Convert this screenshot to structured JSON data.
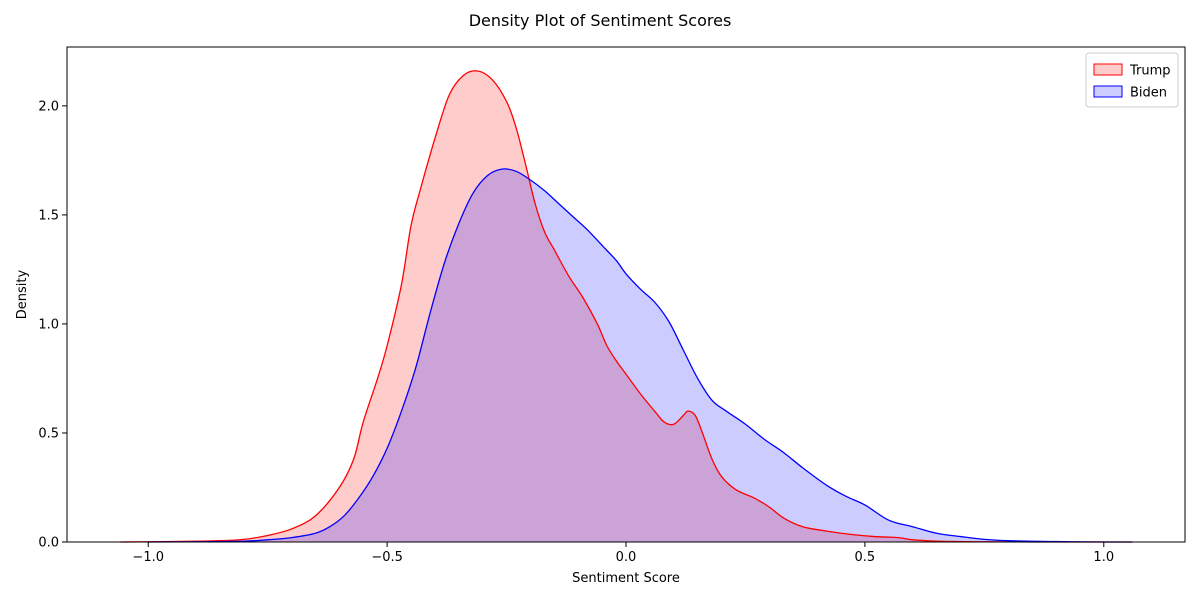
{
  "chart_data": {
    "type": "area",
    "title": "Density Plot of Sentiment Scores",
    "xlabel": "Sentiment Score",
    "ylabel": "Density",
    "xlim": [
      -1.17,
      1.17
    ],
    "ylim": [
      0,
      2.27
    ],
    "xticks": [
      -1.0,
      -0.5,
      0.0,
      0.5,
      1.0
    ],
    "xtick_labels": [
      "−1.0",
      "−0.5",
      "0.0",
      "0.5",
      "1.0"
    ],
    "yticks": [
      0.0,
      0.5,
      1.0,
      1.5,
      2.0
    ],
    "ytick_labels": [
      "0.0",
      "0.5",
      "1.0",
      "1.5",
      "2.0"
    ],
    "grid": false,
    "legend_position": "top-right",
    "series": [
      {
        "name": "Trump",
        "color": "#ff0000",
        "fill": "#ff0000",
        "fill_opacity": 0.2,
        "points": [
          [
            -1.06,
            0.0
          ],
          [
            -0.95,
            0.002
          ],
          [
            -0.85,
            0.006
          ],
          [
            -0.8,
            0.012
          ],
          [
            -0.75,
            0.03
          ],
          [
            -0.7,
            0.06
          ],
          [
            -0.65,
            0.12
          ],
          [
            -0.6,
            0.25
          ],
          [
            -0.57,
            0.38
          ],
          [
            -0.55,
            0.55
          ],
          [
            -0.52,
            0.75
          ],
          [
            -0.5,
            0.9
          ],
          [
            -0.47,
            1.18
          ],
          [
            -0.45,
            1.45
          ],
          [
            -0.43,
            1.62
          ],
          [
            -0.4,
            1.85
          ],
          [
            -0.37,
            2.05
          ],
          [
            -0.34,
            2.14
          ],
          [
            -0.31,
            2.16
          ],
          [
            -0.28,
            2.12
          ],
          [
            -0.25,
            2.02
          ],
          [
            -0.23,
            1.9
          ],
          [
            -0.21,
            1.73
          ],
          [
            -0.19,
            1.55
          ],
          [
            -0.17,
            1.42
          ],
          [
            -0.15,
            1.34
          ],
          [
            -0.12,
            1.22
          ],
          [
            -0.09,
            1.12
          ],
          [
            -0.06,
            1.0
          ],
          [
            -0.04,
            0.9
          ],
          [
            -0.02,
            0.83
          ],
          [
            0.0,
            0.77
          ],
          [
            0.03,
            0.68
          ],
          [
            0.06,
            0.6
          ],
          [
            0.08,
            0.55
          ],
          [
            0.1,
            0.54
          ],
          [
            0.12,
            0.58
          ],
          [
            0.13,
            0.6
          ],
          [
            0.145,
            0.58
          ],
          [
            0.16,
            0.5
          ],
          [
            0.18,
            0.38
          ],
          [
            0.2,
            0.3
          ],
          [
            0.23,
            0.24
          ],
          [
            0.27,
            0.2
          ],
          [
            0.3,
            0.16
          ],
          [
            0.33,
            0.11
          ],
          [
            0.37,
            0.07
          ],
          [
            0.42,
            0.05
          ],
          [
            0.47,
            0.035
          ],
          [
            0.52,
            0.025
          ],
          [
            0.57,
            0.02
          ],
          [
            0.6,
            0.01
          ],
          [
            0.65,
            0.004
          ],
          [
            0.75,
            0.001
          ],
          [
            0.9,
            0.0
          ],
          [
            1.06,
            0.0
          ]
        ]
      },
      {
        "name": "Biden",
        "color": "#0000ff",
        "fill": "#0000ff",
        "fill_opacity": 0.2,
        "points": [
          [
            -1.0,
            0.0
          ],
          [
            -0.9,
            0.001
          ],
          [
            -0.8,
            0.004
          ],
          [
            -0.75,
            0.01
          ],
          [
            -0.7,
            0.02
          ],
          [
            -0.65,
            0.04
          ],
          [
            -0.62,
            0.07
          ],
          [
            -0.59,
            0.12
          ],
          [
            -0.56,
            0.2
          ],
          [
            -0.53,
            0.3
          ],
          [
            -0.5,
            0.43
          ],
          [
            -0.47,
            0.6
          ],
          [
            -0.44,
            0.8
          ],
          [
            -0.41,
            1.05
          ],
          [
            -0.38,
            1.28
          ],
          [
            -0.35,
            1.46
          ],
          [
            -0.32,
            1.6
          ],
          [
            -0.29,
            1.68
          ],
          [
            -0.26,
            1.71
          ],
          [
            -0.23,
            1.7
          ],
          [
            -0.2,
            1.66
          ],
          [
            -0.17,
            1.61
          ],
          [
            -0.14,
            1.55
          ],
          [
            -0.11,
            1.49
          ],
          [
            -0.08,
            1.43
          ],
          [
            -0.05,
            1.36
          ],
          [
            -0.02,
            1.29
          ],
          [
            0.0,
            1.23
          ],
          [
            0.03,
            1.16
          ],
          [
            0.06,
            1.1
          ],
          [
            0.09,
            1.01
          ],
          [
            0.12,
            0.88
          ],
          [
            0.15,
            0.75
          ],
          [
            0.18,
            0.65
          ],
          [
            0.21,
            0.6
          ],
          [
            0.25,
            0.54
          ],
          [
            0.29,
            0.47
          ],
          [
            0.33,
            0.41
          ],
          [
            0.37,
            0.34
          ],
          [
            0.42,
            0.26
          ],
          [
            0.46,
            0.21
          ],
          [
            0.5,
            0.17
          ],
          [
            0.55,
            0.1
          ],
          [
            0.6,
            0.07
          ],
          [
            0.65,
            0.04
          ],
          [
            0.7,
            0.025
          ],
          [
            0.75,
            0.012
          ],
          [
            0.8,
            0.006
          ],
          [
            0.9,
            0.002
          ],
          [
            1.0,
            0.0
          ],
          [
            1.06,
            0.0
          ]
        ]
      }
    ]
  }
}
